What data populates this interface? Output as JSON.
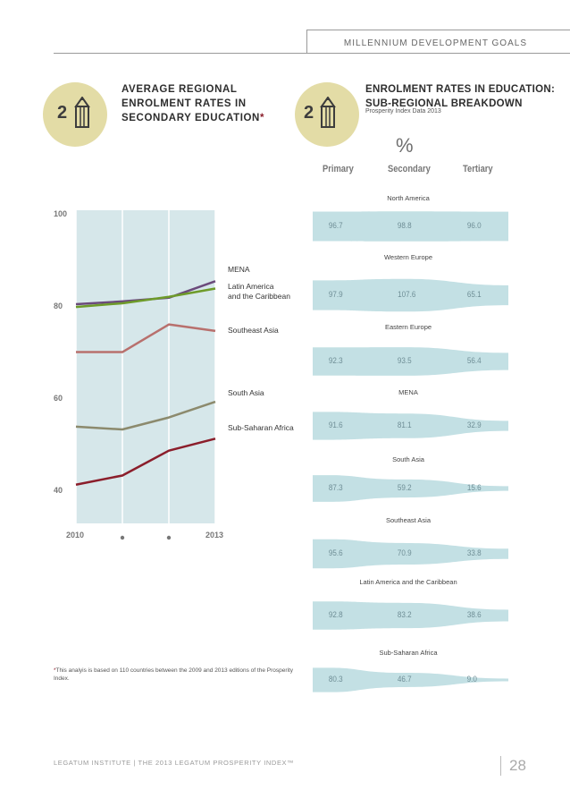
{
  "header": {
    "title": "MILLENNIUM DEVELOPMENT GOALS"
  },
  "left_section": {
    "badge_number": "2",
    "title_lines": [
      "AVERAGE REGIONAL",
      "ENROLMENT RATES IN",
      "SECONDARY EDUCATION"
    ],
    "title_mark": "*"
  },
  "right_section": {
    "badge_number": "2",
    "title_lines": [
      "ENROLMENT RATES IN EDUCATION:",
      "SUB-REGIONAL BREAKDOWN"
    ],
    "subtitle": "Prosperity Index Data 2013",
    "percent_symbol": "%",
    "columns": [
      "Primary",
      "Secondary",
      "Tertiary"
    ]
  },
  "chart_data": [
    {
      "type": "line",
      "x": [
        "2010",
        "2011",
        "2012",
        "2013"
      ],
      "x_tick_labels": [
        "2010",
        "",
        "",
        "2013"
      ],
      "y_ticks": [
        "100",
        "80",
        "60",
        "40"
      ],
      "ylim": [
        33,
        101
      ],
      "grid": true,
      "series": [
        {
          "name": "MENA",
          "color": "#6b4a7b",
          "values": [
            80.6,
            81.2,
            82.0,
            85.6
          ]
        },
        {
          "name": "Latin America and the Caribbean",
          "label_lines": [
            "Latin America",
            "and the Caribbean"
          ],
          "color": "#6e9b2a",
          "values": [
            80.0,
            80.8,
            82.2,
            84.0
          ]
        },
        {
          "name": "Southeast Asia",
          "color": "#b8706d",
          "values": [
            70.2,
            70.2,
            76.2,
            74.8
          ]
        },
        {
          "name": "South Asia",
          "color": "#8c8a6d",
          "values": [
            54.0,
            53.4,
            56.0,
            59.4
          ]
        },
        {
          "name": "Sub-Saharan Africa",
          "color": "#8b1e2b",
          "values": [
            41.4,
            43.4,
            48.8,
            51.4
          ]
        }
      ]
    },
    {
      "type": "table",
      "columns": [
        "Primary",
        "Secondary",
        "Tertiary"
      ],
      "rows": [
        {
          "region": "North America",
          "values": [
            96.7,
            98.8,
            96.0
          ],
          "labels": [
            "96.7",
            "98.8",
            "96.0"
          ]
        },
        {
          "region": "Western Europe",
          "values": [
            97.9,
            107.6,
            65.1
          ],
          "labels": [
            "97.9",
            "107.6",
            "65.1"
          ]
        },
        {
          "region": "Eastern Europe",
          "values": [
            92.3,
            93.5,
            56.4
          ],
          "labels": [
            "92.3",
            "93.5",
            "56.4"
          ]
        },
        {
          "region": "MENA",
          "values": [
            91.6,
            81.1,
            32.9
          ],
          "labels": [
            "91.6",
            "81.1",
            "32.9"
          ]
        },
        {
          "region": "South Asia",
          "values": [
            87.3,
            59.2,
            15.6
          ],
          "labels": [
            "87.3",
            "59.2",
            "15.6"
          ]
        },
        {
          "region": "Southeast Asia",
          "values": [
            95.6,
            70.9,
            33.8
          ],
          "labels": [
            "95.6",
            "70.9",
            "33.8"
          ]
        },
        {
          "region": "Latin America and the Caribbean",
          "values": [
            92.8,
            83.2,
            38.6
          ],
          "labels": [
            "92.8",
            "83.2",
            "38.6"
          ]
        },
        {
          "region": "Sub-Saharan Africa",
          "values": [
            80.3,
            46.7,
            9.0
          ],
          "labels": [
            "80.3",
            "46.7",
            "9.0"
          ]
        }
      ]
    }
  ],
  "colors": {
    "chart_bg": "#d6e7ea",
    "stream_fill": "#c3e0e4",
    "accent": "#8b1e2b",
    "badge": "#e3dca6"
  },
  "icons": [
    "pencil-icon"
  ],
  "footnote": {
    "mark": "*",
    "text": "This analyis is based on 110 countries between the 2009 and 2013 editions of the Prosperity Index."
  },
  "footer": {
    "text": "LEGATUM INSTITUTE | THE 2013 LEGATUM PROSPERITY INDEX™",
    "page_number": "28"
  }
}
